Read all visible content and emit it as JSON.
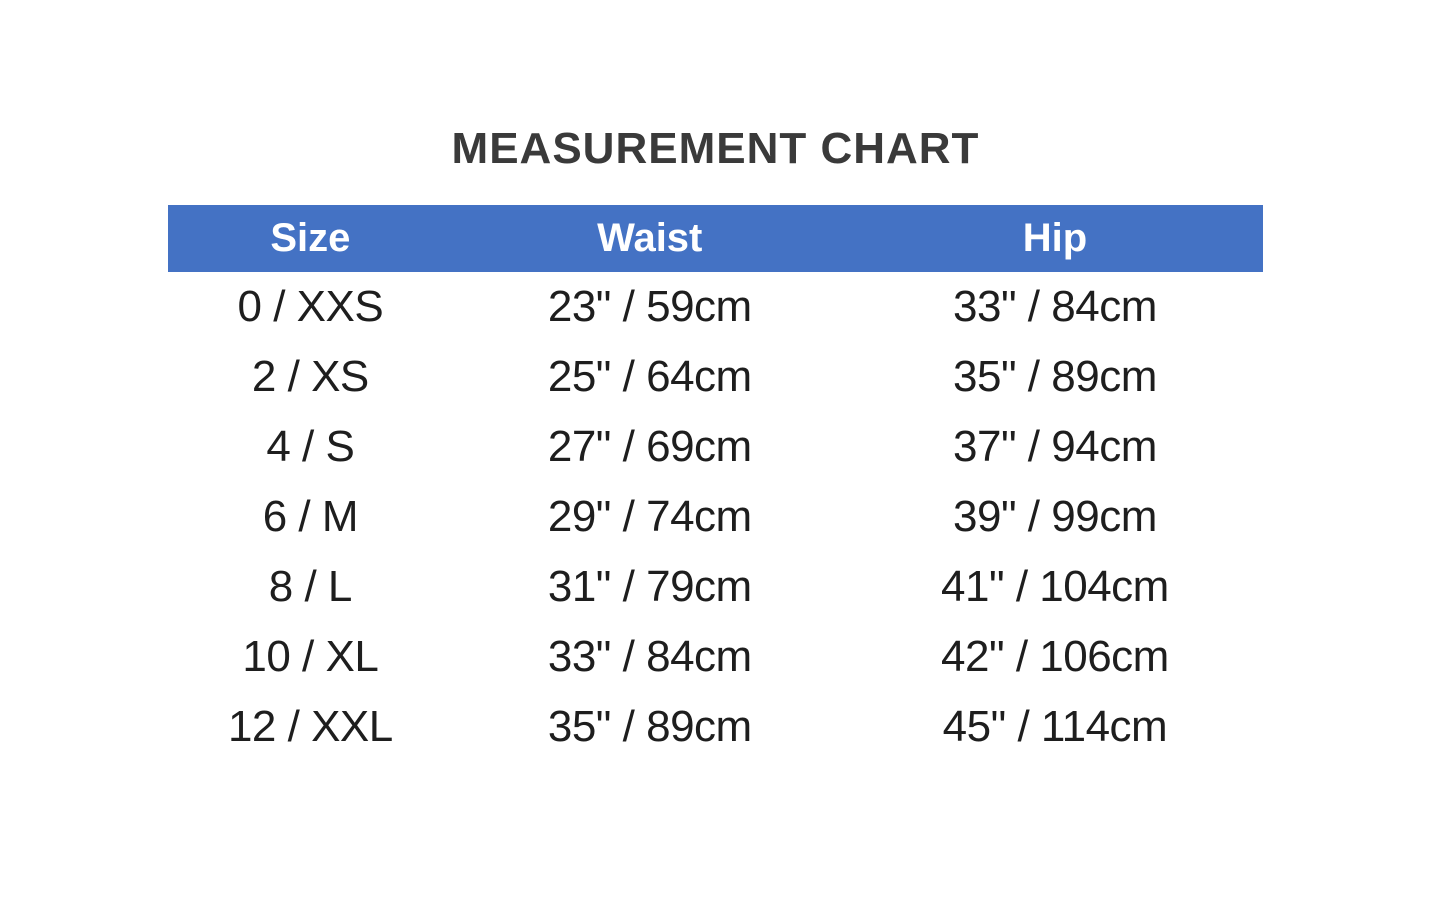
{
  "page": {
    "title": "MEASUREMENT CHART"
  },
  "colors": {
    "header_bg": "#4472C4",
    "header_text": "#FFFFFF",
    "title_text": "#3A3A3A",
    "body_text": "#1E1E1E",
    "background": "#FFFFFF"
  },
  "chart_data": {
    "type": "table",
    "title": "MEASUREMENT CHART",
    "columns": [
      "Size",
      "Waist",
      "Hip"
    ],
    "rows": [
      [
        "0 / XXS",
        "23\" / 59cm",
        "33\" / 84cm"
      ],
      [
        "2 / XS",
        "25\" / 64cm",
        "35\" / 89cm"
      ],
      [
        "4 / S",
        "27\" / 69cm",
        "37\" / 94cm"
      ],
      [
        "6 / M",
        "29\" / 74cm",
        "39\" / 99cm"
      ],
      [
        "8 / L",
        "31\" / 79cm",
        "41\" / 104cm"
      ],
      [
        "10 / XL",
        "33\" / 84cm",
        "42\" / 106cm"
      ],
      [
        "12 / XXL",
        "35\" / 89cm",
        "45\" / 114cm"
      ]
    ],
    "layout": {
      "legend": "none",
      "grid": "off",
      "header_row_shaded": true
    }
  }
}
